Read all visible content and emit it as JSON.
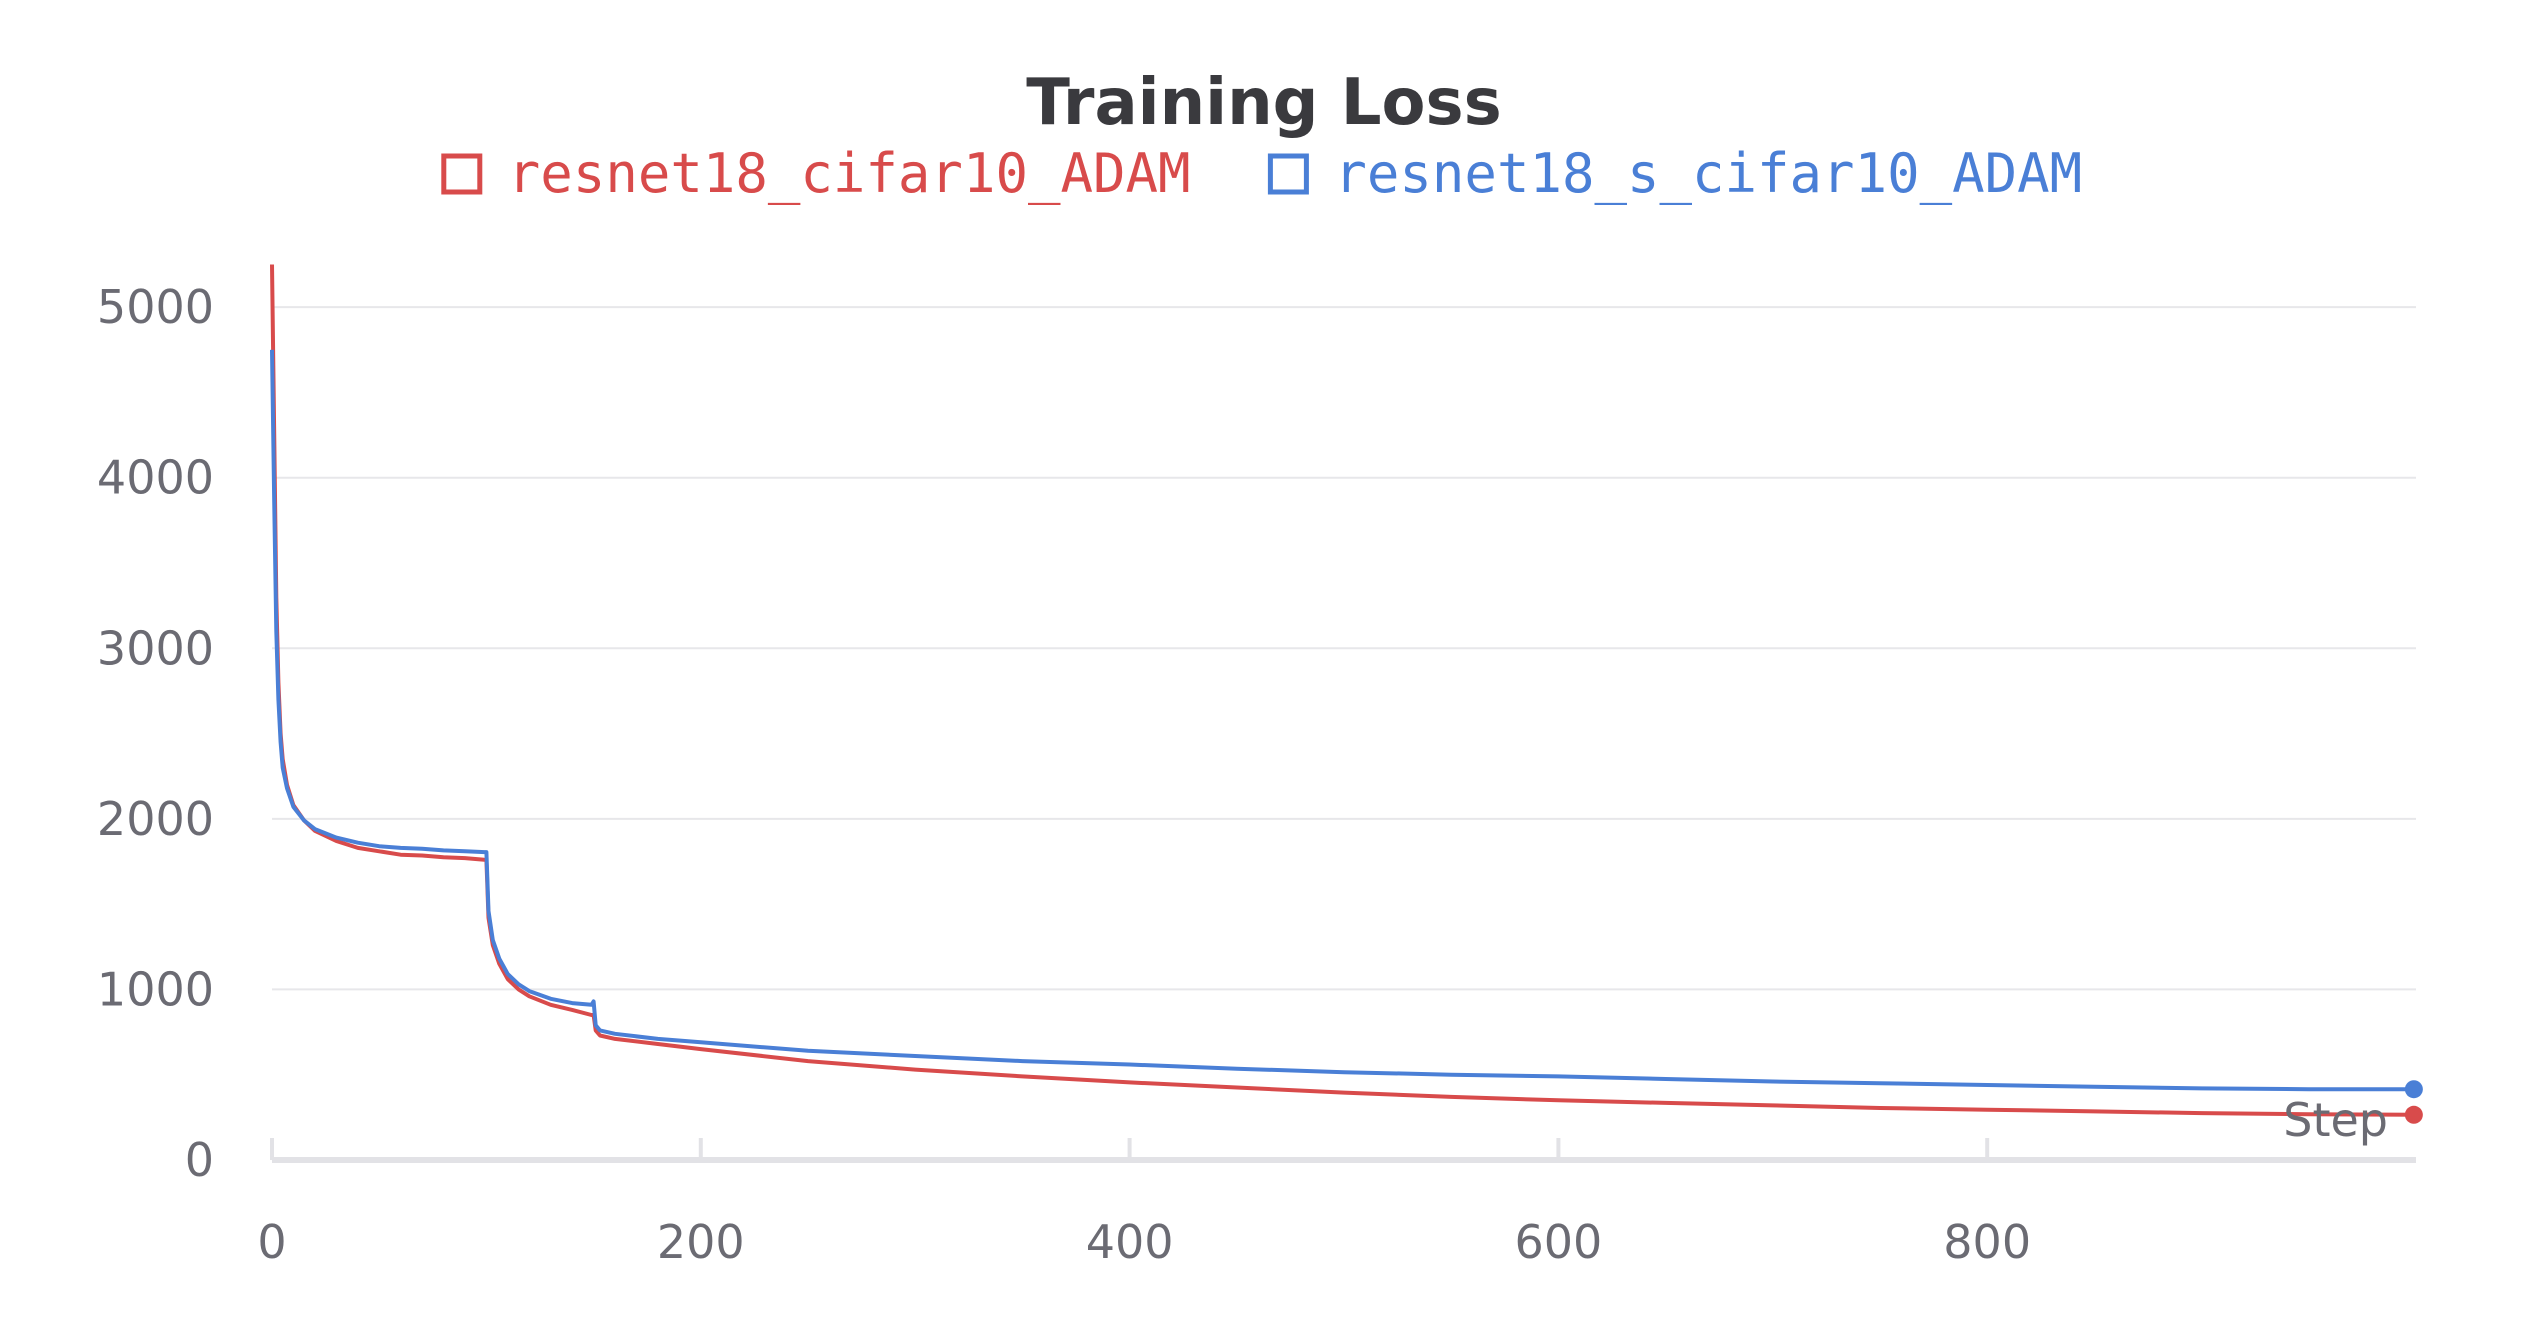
{
  "chart_data": {
    "type": "line",
    "title": "Training Loss",
    "xlabel": "Step",
    "ylabel": "",
    "xlim": [
      0,
      1000
    ],
    "ylim": [
      0,
      5300
    ],
    "x_ticks": [
      0,
      200,
      400,
      600,
      800
    ],
    "y_ticks": [
      0,
      1000,
      2000,
      3000,
      4000,
      5000
    ],
    "grid": true,
    "legend_position": "top",
    "series": [
      {
        "name": "resnet18_cifar10_ADAM",
        "color": "#d84b4b",
        "x": [
          0,
          1,
          2,
          3,
          4,
          5,
          7,
          10,
          15,
          20,
          30,
          40,
          50,
          60,
          70,
          80,
          90,
          99,
          100,
          101,
          103,
          106,
          110,
          115,
          120,
          130,
          140,
          149,
          150,
          151,
          153,
          160,
          180,
          200,
          250,
          300,
          350,
          400,
          450,
          500,
          550,
          600,
          650,
          700,
          750,
          800,
          850,
          900,
          950,
          999
        ],
        "y": [
          5250,
          4300,
          3300,
          2800,
          2500,
          2350,
          2200,
          2080,
          1990,
          1930,
          1870,
          1830,
          1810,
          1790,
          1785,
          1775,
          1770,
          1760,
          1760,
          1420,
          1260,
          1150,
          1060,
          1000,
          960,
          910,
          880,
          850,
          850,
          760,
          730,
          710,
          680,
          650,
          580,
          530,
          490,
          455,
          425,
          395,
          370,
          350,
          335,
          320,
          305,
          295,
          285,
          275,
          268,
          265
        ]
      },
      {
        "name": "resnet18_s_cifar10_ADAM",
        "color": "#4a7fd6",
        "x": [
          0,
          1,
          2,
          3,
          4,
          5,
          7,
          10,
          15,
          20,
          30,
          40,
          50,
          60,
          70,
          80,
          90,
          99,
          100,
          101,
          103,
          106,
          110,
          115,
          120,
          130,
          140,
          149,
          150,
          151,
          153,
          160,
          180,
          200,
          250,
          300,
          350,
          400,
          450,
          500,
          550,
          600,
          650,
          700,
          750,
          800,
          850,
          900,
          950,
          999
        ],
        "y": [
          4750,
          3900,
          3100,
          2700,
          2450,
          2300,
          2180,
          2070,
          1990,
          1940,
          1890,
          1860,
          1840,
          1830,
          1825,
          1815,
          1810,
          1805,
          1805,
          1460,
          1290,
          1180,
          1090,
          1030,
          990,
          945,
          920,
          910,
          930,
          790,
          760,
          740,
          710,
          690,
          640,
          610,
          580,
          560,
          535,
          515,
          500,
          490,
          475,
          460,
          450,
          440,
          430,
          420,
          415,
          415
        ]
      }
    ]
  }
}
